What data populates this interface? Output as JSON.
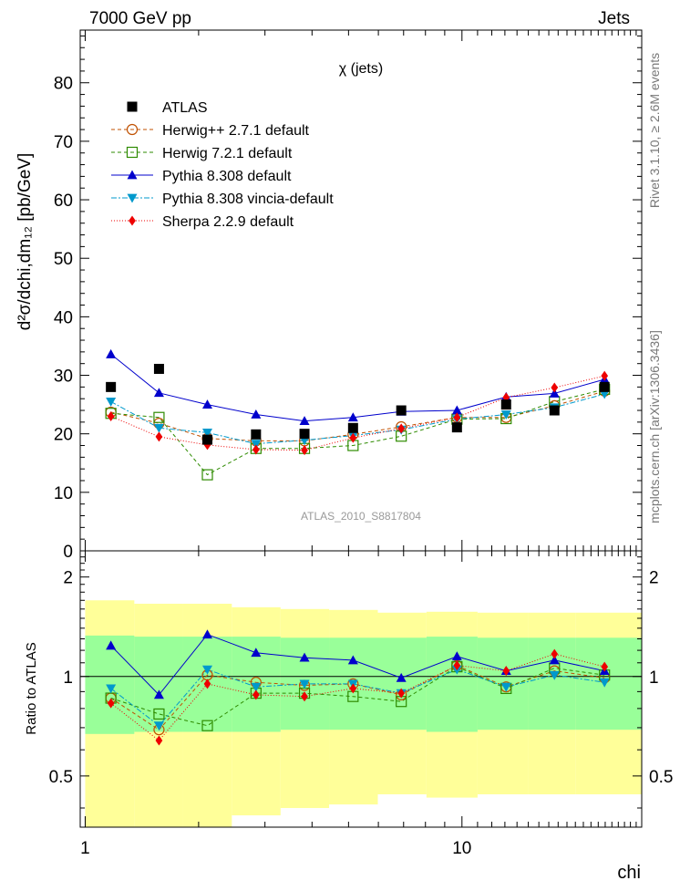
{
  "header": {
    "left": "7000 GeV pp",
    "right": "Jets"
  },
  "side_labels": {
    "rivet": "Rivet 3.1.10, ≥ 2.6M events",
    "mcplots": "mcplots.cern.ch [arXiv:1306.3436]"
  },
  "chart_data": {
    "type": "scatter",
    "title": "χ (jets)",
    "analysis_label": "ATLAS_2010_S8817804",
    "xlabel": "chi",
    "ylabel": "d²σ/dchi,dm₁₂ [pb/GeV]",
    "ratio_ylabel": "Ratio to ATLAS",
    "x_scale": "log",
    "xlim": [
      0.97,
      30
    ],
    "ylim": [
      0,
      89
    ],
    "ratio_ylim": [
      0.35,
      2.4
    ],
    "main_ticks": [
      "0",
      "10",
      "20",
      "30",
      "40",
      "50",
      "60",
      "70",
      "80"
    ],
    "ratio_ticks": [
      "0.5",
      "1",
      "2"
    ],
    "x_ticks": [
      "1",
      "10"
    ],
    "legend_position": "top-left",
    "x": [
      1.17,
      1.57,
      2.11,
      2.84,
      3.82,
      5.14,
      6.9,
      9.7,
      13.1,
      17.6,
      23.9
    ],
    "bin_edges": [
      1.0,
      1.35,
      1.82,
      2.45,
      3.3,
      4.44,
      5.98,
      8.05,
      11.0,
      15.0,
      20.0,
      30.0
    ],
    "reference": {
      "name": "ATLAS",
      "values": [
        28,
        31.1,
        19,
        19.9,
        20,
        21,
        24,
        21.1,
        25,
        24,
        28
      ],
      "band_inner": [
        0.33,
        0.32,
        0.32,
        0.32,
        0.31,
        0.31,
        0.31,
        0.32,
        0.31,
        0.31,
        0.31
      ],
      "band_outer": [
        0.7,
        0.66,
        0.66,
        0.62,
        0.6,
        0.59,
        0.56,
        0.57,
        0.56,
        0.56,
        0.56
      ]
    },
    "series": [
      {
        "name": "Herwig++ 2.7.1 default",
        "color": "#c05000",
        "marker": "open-circle",
        "dash": "4,3",
        "values": [
          23.7,
          21.8,
          19.2,
          18.8,
          18.8,
          19.9,
          21.2,
          22.8,
          22.8,
          24.8,
          27.3
        ],
        "ratio": [
          0.86,
          0.69,
          1.01,
          0.96,
          0.94,
          0.95,
          0.88,
          1.08,
          0.93,
          1.04,
          0.99
        ]
      },
      {
        "name": "Herwig 7.2.1 default",
        "color": "#2e8b00",
        "marker": "open-square",
        "dash": "4,3",
        "values": [
          23.5,
          22.8,
          13.0,
          17.5,
          17.5,
          18.0,
          19.6,
          22.5,
          22.6,
          25.5,
          27.6
        ],
        "ratio": [
          0.86,
          0.77,
          0.71,
          0.89,
          0.89,
          0.87,
          0.84,
          1.07,
          0.92,
          1.06,
          1.01
        ]
      },
      {
        "name": "Pythia 8.308 default",
        "color": "#0000cc",
        "marker": "filled-triangle-up",
        "dash": "",
        "values": [
          33.6,
          27.0,
          25.0,
          23.3,
          22.2,
          22.8,
          23.8,
          24.0,
          26.3,
          26.9,
          29.3
        ],
        "ratio": [
          1.24,
          0.88,
          1.34,
          1.18,
          1.14,
          1.12,
          0.99,
          1.15,
          1.04,
          1.12,
          1.04
        ]
      },
      {
        "name": "Pythia 8.308 vincia-default",
        "color": "#0099cc",
        "marker": "filled-triangle-down",
        "dash": "6,2,2,2",
        "values": [
          25.5,
          21.0,
          20.2,
          18.3,
          18.9,
          19.7,
          20.7,
          22.5,
          23.3,
          24.5,
          26.8
        ],
        "ratio": [
          0.92,
          0.71,
          1.05,
          0.93,
          0.95,
          0.95,
          0.89,
          1.05,
          0.93,
          1.01,
          0.96
        ]
      },
      {
        "name": "Sherpa 2.2.9 default",
        "color": "#ee0000",
        "marker": "filled-diamond",
        "dash": "1,2",
        "values": [
          23.0,
          19.5,
          18.1,
          17.3,
          17.2,
          19.3,
          20.9,
          22.8,
          26.2,
          27.9,
          29.9
        ],
        "ratio": [
          0.83,
          0.64,
          0.95,
          0.88,
          0.87,
          0.92,
          0.89,
          1.08,
          1.04,
          1.17,
          1.07
        ]
      }
    ]
  }
}
